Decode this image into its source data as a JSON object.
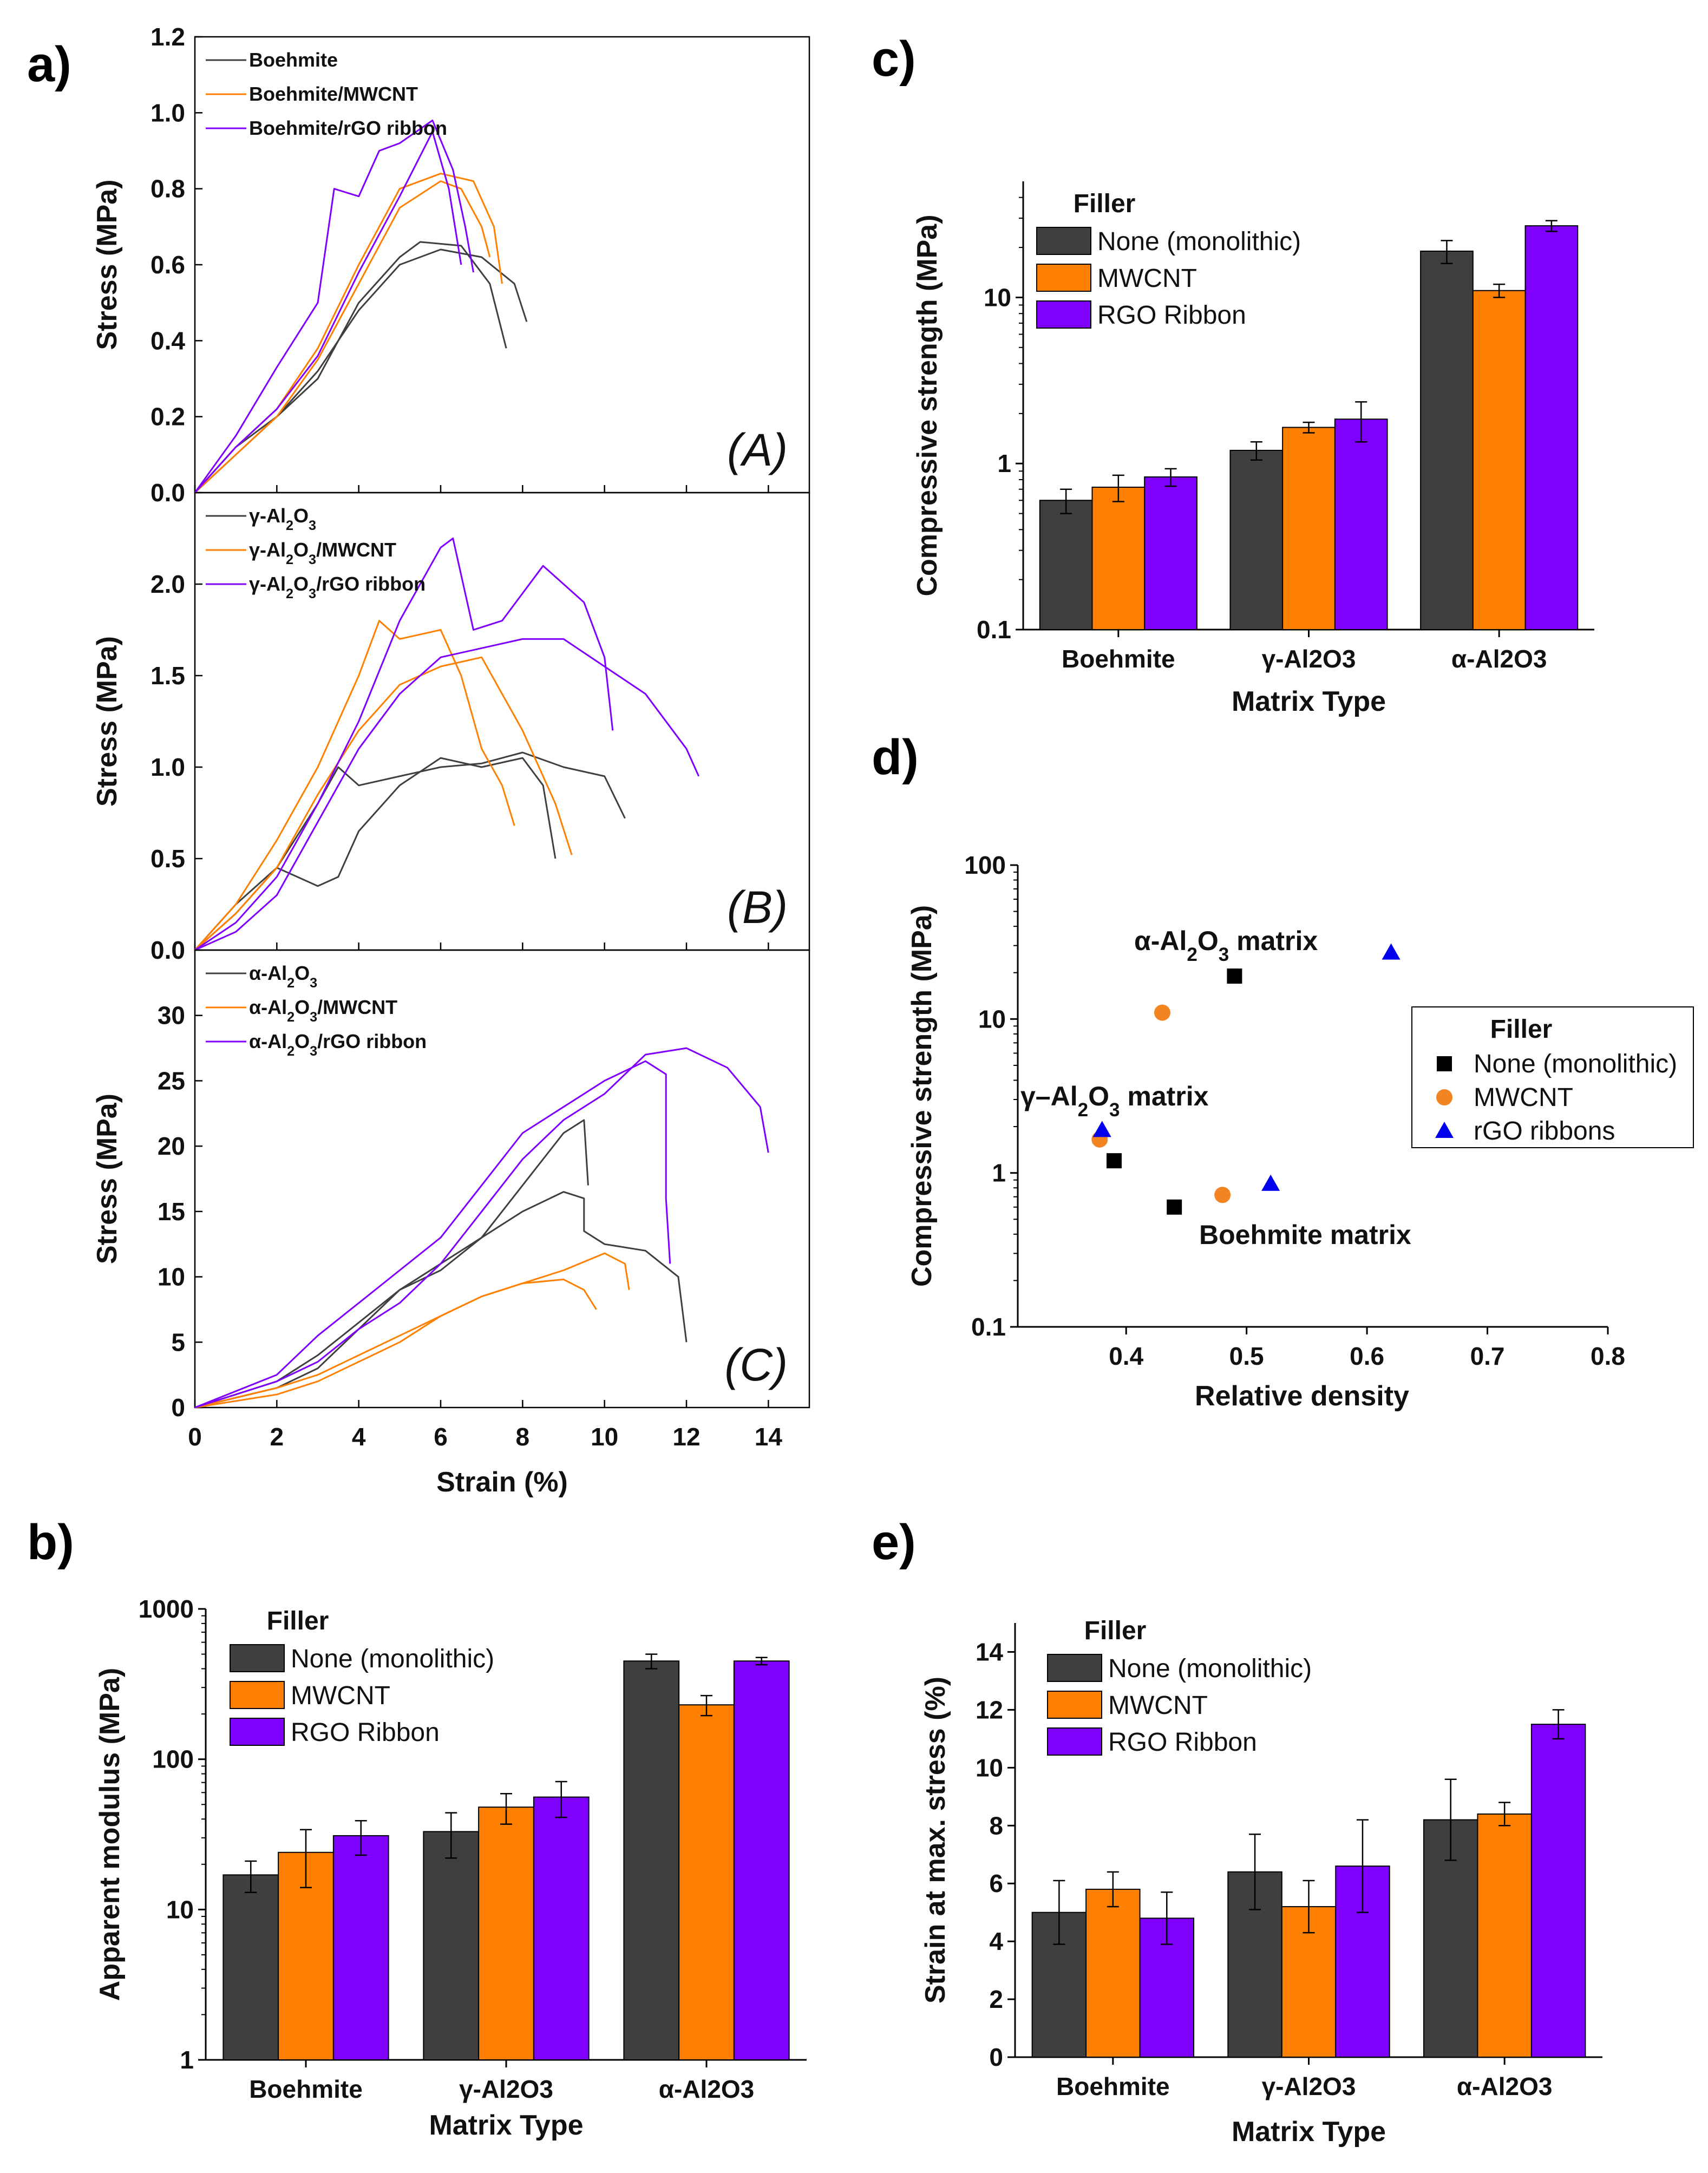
{
  "panel_letters": [
    "a)",
    "b)",
    "c)",
    "d)",
    "e)"
  ],
  "colors": {
    "none": "#3f3f3f",
    "mwcnt": "#ff8000",
    "rgo": "#8000ff",
    "errorbar": "#000000",
    "scatter_none": "#000000",
    "scatter_mwcnt": "#f28522",
    "scatter_rgo": "#0000ee"
  },
  "chart_data": [
    {
      "id": "a",
      "type": "line",
      "title": "",
      "xlabel": "Strain (%)",
      "xlim": [
        0,
        15
      ],
      "xticks": [
        "0",
        "2",
        "4",
        "6",
        "8",
        "10",
        "12",
        "14"
      ],
      "subpanels": [
        {
          "tag": "(A)",
          "ylabel": "Stress (MPa)",
          "ylim": [
            0,
            1.2
          ],
          "yticks": [
            "0.0",
            "0.2",
            "0.4",
            "0.6",
            "0.8",
            "1.0",
            "1.2"
          ],
          "series": [
            {
              "name": "Boehmite",
              "color": "#3f3f3f",
              "x": [
                0,
                1,
                2,
                3,
                4,
                5,
                5.5,
                6.5,
                7.2,
                7.6
              ],
              "y": [
                0,
                0.1,
                0.2,
                0.3,
                0.5,
                0.62,
                0.66,
                0.65,
                0.55,
                0.38
              ]
            },
            {
              "name": "Boehmite",
              "color": "#3f3f3f",
              "x": [
                0,
                1,
                2,
                3,
                4,
                5,
                6,
                7,
                7.8,
                8.1
              ],
              "y": [
                0,
                0.12,
                0.2,
                0.32,
                0.48,
                0.6,
                0.64,
                0.62,
                0.55,
                0.45
              ]
            },
            {
              "name": "Boehmite/MWCNT",
              "color": "#ff8000",
              "x": [
                0,
                1,
                2,
                3,
                4,
                5,
                6,
                6.8,
                7.3,
                7.5
              ],
              "y": [
                0,
                0.12,
                0.22,
                0.38,
                0.6,
                0.8,
                0.84,
                0.82,
                0.7,
                0.55
              ]
            },
            {
              "name": "Boehmite/MWCNT",
              "color": "#ff8000",
              "x": [
                0,
                1,
                2,
                3,
                4,
                5,
                6,
                6.5,
                7,
                7.2
              ],
              "y": [
                0,
                0.1,
                0.2,
                0.35,
                0.55,
                0.75,
                0.82,
                0.8,
                0.7,
                0.62
              ]
            },
            {
              "name": "Boehmite/rGO ribbon",
              "color": "#8000ff",
              "x": [
                0,
                1,
                2,
                3,
                3.4,
                4,
                4.5,
                5,
                5.8,
                6.3,
                6.6,
                6.8
              ],
              "y": [
                0,
                0.15,
                0.33,
                0.5,
                0.8,
                0.78,
                0.9,
                0.92,
                0.98,
                0.85,
                0.7,
                0.58
              ]
            },
            {
              "name": "Boehmite/rGO ribbon",
              "color": "#8000ff",
              "x": [
                0,
                1,
                2,
                3,
                4,
                5,
                5.8,
                6.2,
                6.5
              ],
              "y": [
                0,
                0.12,
                0.22,
                0.36,
                0.58,
                0.78,
                0.95,
                0.8,
                0.6
              ]
            }
          ]
        },
        {
          "tag": "(B)",
          "ylabel": "Stress (MPa)",
          "ylim": [
            0,
            2.5
          ],
          "yticks": [
            "0.0",
            "0.5",
            "1.0",
            "1.5",
            "2.0"
          ],
          "series": [
            {
              "name": "γ-Al2O3",
              "color": "#3f3f3f",
              "x": [
                0,
                1,
                2,
                2.5,
                3,
                3.5,
                4,
                5,
                6,
                7,
                8,
                8.5,
                8.8
              ],
              "y": [
                0,
                0.25,
                0.45,
                0.4,
                0.35,
                0.4,
                0.65,
                0.9,
                1.05,
                1.0,
                1.05,
                0.9,
                0.5
              ]
            },
            {
              "name": "γ-Al2O3",
              "color": "#3f3f3f",
              "x": [
                0,
                1,
                2,
                3,
                3.5,
                4,
                5,
                6,
                7,
                8,
                9,
                10,
                10.5
              ],
              "y": [
                0,
                0.2,
                0.45,
                0.8,
                1.0,
                0.9,
                0.95,
                1.0,
                1.02,
                1.08,
                1.0,
                0.95,
                0.72
              ]
            },
            {
              "name": "γ-Al2O3/MWCNT",
              "color": "#ff8000",
              "x": [
                0,
                1,
                2,
                3,
                4,
                4.5,
                5,
                6,
                6.5,
                7,
                7.5,
                7.8
              ],
              "y": [
                0,
                0.25,
                0.6,
                1.0,
                1.5,
                1.8,
                1.7,
                1.75,
                1.5,
                1.1,
                0.9,
                0.68
              ]
            },
            {
              "name": "γ-Al2O3/MWCNT",
              "color": "#ff8000",
              "x": [
                0,
                1,
                2,
                3,
                4,
                5,
                6,
                7,
                8,
                8.8,
                9.2
              ],
              "y": [
                0,
                0.2,
                0.45,
                0.85,
                1.2,
                1.45,
                1.55,
                1.6,
                1.2,
                0.8,
                0.52
              ]
            },
            {
              "name": "γ-Al2O3/rGO ribbon",
              "color": "#8000ff",
              "x": [
                0,
                1,
                2,
                3,
                4,
                5,
                6,
                6.3,
                6.8,
                7.5,
                8.5,
                9.5,
                10,
                10.2
              ],
              "y": [
                0,
                0.15,
                0.4,
                0.8,
                1.25,
                1.8,
                2.2,
                2.25,
                1.75,
                1.8,
                2.1,
                1.9,
                1.6,
                1.2
              ]
            },
            {
              "name": "γ-Al2O3/rGO ribbon",
              "color": "#8000ff",
              "x": [
                0,
                1,
                2,
                3,
                4,
                5,
                6,
                7,
                8,
                9,
                10,
                11,
                12,
                12.3
              ],
              "y": [
                0,
                0.1,
                0.3,
                0.7,
                1.1,
                1.4,
                1.6,
                1.65,
                1.7,
                1.7,
                1.55,
                1.4,
                1.1,
                0.95
              ]
            }
          ]
        },
        {
          "tag": "(C)",
          "ylabel": "Stress (MPa)",
          "ylim": [
            0,
            35
          ],
          "yticks": [
            "0",
            "5",
            "10",
            "15",
            "20",
            "25",
            "30"
          ],
          "series": [
            {
              "name": "α-Al2O3",
              "color": "#3f3f3f",
              "x": [
                0,
                2,
                3,
                4,
                5,
                6,
                7,
                8,
                9,
                9.5,
                9.5,
                10,
                11,
                11.8,
                12
              ],
              "y": [
                0,
                1.5,
                3,
                6,
                9,
                11,
                13,
                15,
                16.5,
                16,
                13.5,
                12.5,
                12,
                10,
                5
              ]
            },
            {
              "name": "α-Al2O3",
              "color": "#3f3f3f",
              "x": [
                0,
                2,
                3,
                4,
                5,
                6,
                7,
                8,
                9,
                9.5,
                9.6
              ],
              "y": [
                0,
                2,
                4,
                6.5,
                9,
                10.5,
                13,
                17,
                21,
                22,
                17
              ]
            },
            {
              "name": "α-Al2O3/MWCNT",
              "color": "#ff8000",
              "x": [
                0,
                2,
                3,
                4,
                5,
                6,
                7,
                8,
                9,
                9.5,
                9.8
              ],
              "y": [
                0,
                1.5,
                2.5,
                4,
                5.5,
                7,
                8.5,
                9.5,
                9.8,
                9,
                7.5
              ]
            },
            {
              "name": "α-Al2O3/MWCNT",
              "color": "#ff8000",
              "x": [
                0,
                2,
                3,
                4,
                5,
                6,
                7,
                8,
                9,
                10,
                10.5,
                10.6
              ],
              "y": [
                0,
                1,
                2,
                3.5,
                5,
                7,
                8.5,
                9.5,
                10.5,
                11.8,
                11,
                9
              ]
            },
            {
              "name": "α-Al2O3/rGO ribbon",
              "color": "#8000ff",
              "x": [
                0,
                2,
                3,
                4,
                5,
                6,
                7,
                8,
                9,
                10,
                11,
                11.5,
                11.5,
                11.6
              ],
              "y": [
                0,
                2.5,
                5.5,
                8,
                10.5,
                13,
                17,
                21,
                23,
                25,
                26.5,
                25.5,
                16,
                11
              ]
            },
            {
              "name": "α-Al2O3/rGO ribbon",
              "color": "#8000ff",
              "x": [
                0,
                2,
                3,
                4,
                5,
                6,
                7,
                8,
                9,
                10,
                11,
                12,
                13,
                13.8,
                14
              ],
              "y": [
                0,
                2,
                3.5,
                6,
                8,
                11,
                15,
                19,
                22,
                24,
                27,
                27.5,
                26,
                23,
                19.5
              ]
            }
          ]
        }
      ]
    },
    {
      "id": "b",
      "type": "bar",
      "scale": "log",
      "xlabel": "Matrix Type",
      "ylabel": "Apparent modulus (MPa)",
      "ylim": [
        1,
        1000
      ],
      "yticks": [
        "1",
        "10",
        "100",
        "1000"
      ],
      "categories": [
        "Boehmite",
        "γ-Al2O3",
        "α-Al2O3"
      ],
      "legend_title": "Filler",
      "series": [
        {
          "name": "None (monolithic)",
          "color": "#3f3f3f",
          "values": [
            17,
            33,
            450
          ],
          "errors": [
            4,
            11,
            50
          ]
        },
        {
          "name": "MWCNT",
          "color": "#ff8000",
          "values": [
            24,
            48,
            230
          ],
          "errors": [
            10,
            11,
            35
          ]
        },
        {
          "name": "RGO Ribbon",
          "color": "#8000ff",
          "values": [
            31,
            56,
            450
          ],
          "errors": [
            8,
            15,
            25
          ]
        }
      ]
    },
    {
      "id": "c",
      "type": "bar",
      "scale": "log",
      "xlabel": "Matrix Type",
      "ylabel": "Compressive strength (MPa)",
      "ylim": [
        0.1,
        50
      ],
      "yticks": [
        "0.1",
        "1",
        "10"
      ],
      "categories": [
        "Boehmite",
        "γ-Al2O3",
        "α-Al2O3"
      ],
      "legend_title": "Filler",
      "series": [
        {
          "name": "None (monolithic)",
          "color": "#3f3f3f",
          "values": [
            0.6,
            1.2,
            19
          ],
          "errors": [
            0.1,
            0.15,
            3
          ]
        },
        {
          "name": "MWCNT",
          "color": "#ff8000",
          "values": [
            0.72,
            1.65,
            11
          ],
          "errors": [
            0.13,
            0.12,
            1
          ]
        },
        {
          "name": "RGO Ribbon",
          "color": "#8000ff",
          "values": [
            0.83,
            1.85,
            27
          ],
          "errors": [
            0.1,
            0.5,
            2
          ]
        }
      ]
    },
    {
      "id": "d",
      "type": "scatter",
      "scale": "log",
      "xlabel": "Relative density",
      "ylabel": "Compressive strength (MPa)",
      "xlim": [
        0.31,
        0.8
      ],
      "ylim": [
        0.1,
        100
      ],
      "xticks": [
        "0.4",
        "0.5",
        "0.6",
        "0.7",
        "0.8"
      ],
      "yticks": [
        "0.1",
        "1",
        "10",
        "100"
      ],
      "legend_title": "Filler",
      "annotations": [
        "α-Al2O3 matrix",
        "γ–Al2O3 matrix",
        "Boehmite matrix"
      ],
      "series": [
        {
          "name": "None (monolithic)",
          "marker": "square",
          "color": "#000000",
          "x": [
            0.44,
            0.39,
            0.49
          ],
          "y": [
            0.6,
            1.2,
            19
          ]
        },
        {
          "name": "MWCNT",
          "marker": "circle",
          "color": "#f28522",
          "x": [
            0.48,
            0.378,
            0.43
          ],
          "y": [
            0.72,
            1.65,
            11
          ]
        },
        {
          "name": "rGO ribbons",
          "marker": "triangle",
          "color": "#0000ee",
          "x": [
            0.52,
            0.38,
            0.62
          ],
          "y": [
            0.85,
            1.9,
            27
          ]
        }
      ]
    },
    {
      "id": "e",
      "type": "bar",
      "scale": "linear",
      "xlabel": "Matrix Type",
      "ylabel": "Strain at max. stress (%)",
      "ylim": [
        0,
        15
      ],
      "yticks": [
        "0",
        "2",
        "4",
        "6",
        "8",
        "10",
        "12",
        "14"
      ],
      "categories": [
        "Boehmite",
        "γ-Al2O3",
        "α-Al2O3"
      ],
      "legend_title": "Filler",
      "series": [
        {
          "name": "None (monolithic)",
          "color": "#3f3f3f",
          "values": [
            5.0,
            6.4,
            8.2
          ],
          "errors": [
            1.1,
            1.3,
            1.4
          ]
        },
        {
          "name": "MWCNT",
          "color": "#ff8000",
          "values": [
            5.8,
            5.2,
            8.4
          ],
          "errors": [
            0.6,
            0.9,
            0.4
          ]
        },
        {
          "name": "RGO Ribbon",
          "color": "#8000ff",
          "values": [
            4.8,
            6.6,
            11.5
          ],
          "errors": [
            0.9,
            1.6,
            0.5
          ]
        }
      ]
    }
  ]
}
